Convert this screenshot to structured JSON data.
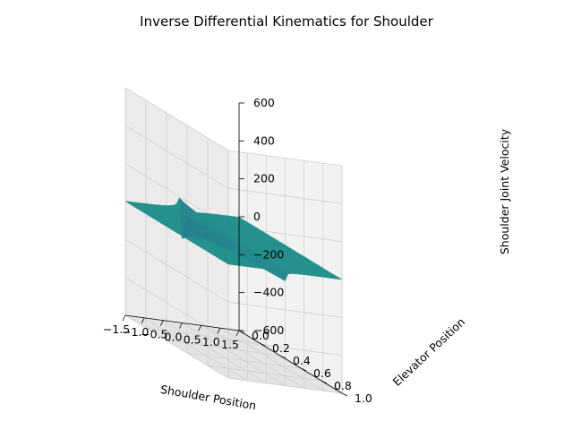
{
  "chart_data": {
    "type": "surface3d",
    "title": "Inverse Differential Kinematics for Shoulder",
    "xlabel": "Shoulder Position",
    "ylabel": "Elevator Position",
    "zlabel": "Shoulder Joint Velocity",
    "xlim": [
      -1.5,
      1.5
    ],
    "ylim": [
      0.0,
      1.0
    ],
    "zlim": [
      -600,
      600
    ],
    "x_ticks": [
      "−1.5",
      "−1.0",
      "−0.5",
      "0.0",
      "0.5",
      "1.0",
      "1.5"
    ],
    "y_ticks": [
      "0.0",
      "0.2",
      "0.4",
      "0.6",
      "0.8",
      "1.0"
    ],
    "z_ticks": [
      "−600",
      "−400",
      "−200",
      "0",
      "200",
      "400",
      "600"
    ],
    "colormap": "viridis",
    "pane_color": "#f2f2f2",
    "grid": true
  }
}
